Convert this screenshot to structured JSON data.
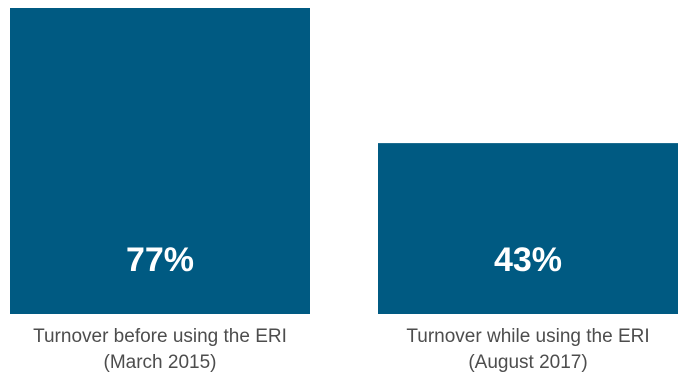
{
  "chart_data": {
    "type": "bar",
    "categories": [
      "Turnover before using the ERI (March 2015)",
      "Turnover while using the ERI (August 2017)"
    ],
    "category_lines": [
      [
        "Turnover before using the ERI",
        "(March 2015)"
      ],
      [
        "Turnover while using the ERI",
        "(August 2017)"
      ]
    ],
    "values": [
      77,
      43
    ],
    "value_labels": [
      "77%",
      "43%"
    ],
    "unit": "%",
    "ylim": [
      0,
      77
    ],
    "grid": false,
    "legend": "none",
    "colors": {
      "bar": "#005a82",
      "value_text": "#ffffff",
      "category_text": "#4d4d4d"
    }
  }
}
